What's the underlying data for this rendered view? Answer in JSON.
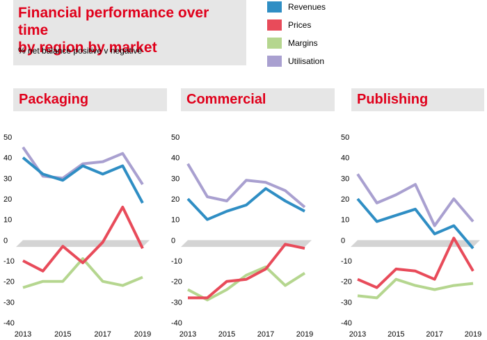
{
  "header": {
    "title_line1": "Financial performance over time",
    "title_line2": "by region by market",
    "subtitle": "% net balance positive v negative"
  },
  "legend": [
    {
      "label": "Revenues",
      "color": "#2f8ec4"
    },
    {
      "label": "Prices",
      "color": "#e84b5a"
    },
    {
      "label": "Margins",
      "color": "#b5d68f"
    },
    {
      "label": "Utilisation",
      "color": "#a9a0d0"
    }
  ],
  "chart_data": [
    {
      "type": "line",
      "title": "Packaging",
      "x": [
        2013,
        2014,
        2015,
        2016,
        2017,
        2018,
        2019
      ],
      "x_tick_labels": [
        "2013",
        "2015",
        "2017",
        "2019"
      ],
      "y_tick_labels": [
        "50",
        "40",
        "30",
        "20",
        "10",
        "0",
        "-10",
        "-20",
        "-30",
        "-40"
      ],
      "ylim": [
        -40,
        50
      ],
      "series": [
        {
          "name": "Revenues",
          "values": [
            40,
            32,
            29,
            36,
            32,
            36,
            18
          ]
        },
        {
          "name": "Prices",
          "values": [
            -10,
            -15,
            -3,
            -11,
            -1,
            16,
            -4
          ]
        },
        {
          "name": "Margins",
          "values": [
            -23,
            -20,
            -20,
            -9,
            -20,
            -22,
            -18
          ]
        },
        {
          "name": "Utilisation",
          "values": [
            45,
            31,
            30,
            37,
            38,
            42,
            27
          ]
        }
      ]
    },
    {
      "type": "line",
      "title": "Commercial",
      "x": [
        2013,
        2014,
        2015,
        2016,
        2017,
        2018,
        2019
      ],
      "x_tick_labels": [
        "2013",
        "2015",
        "2017",
        "2019"
      ],
      "y_tick_labels": [
        "50",
        "40",
        "30",
        "20",
        "10",
        "0",
        "-10",
        "-20",
        "-30",
        "-40"
      ],
      "ylim": [
        -40,
        50
      ],
      "series": [
        {
          "name": "Revenues",
          "values": [
            20,
            10,
            14,
            17,
            25,
            19,
            14
          ]
        },
        {
          "name": "Prices",
          "values": [
            -28,
            -28,
            -20,
            -19,
            -14,
            -2,
            -4
          ]
        },
        {
          "name": "Margins",
          "values": [
            -24,
            -29,
            -24,
            -17,
            -13,
            -22,
            -16
          ]
        },
        {
          "name": "Utilisation",
          "values": [
            37,
            21,
            19,
            29,
            28,
            24,
            16
          ]
        }
      ]
    },
    {
      "type": "line",
      "title": "Publishing",
      "x": [
        2013,
        2014,
        2015,
        2016,
        2017,
        2018,
        2019
      ],
      "x_tick_labels": [
        "2013",
        "2015",
        "2017",
        "2019"
      ],
      "y_tick_labels": [
        "50",
        "40",
        "30",
        "20",
        "10",
        "0",
        "-10",
        "-20",
        "-30",
        "-40"
      ],
      "ylim": [
        -40,
        50
      ],
      "series": [
        {
          "name": "Revenues",
          "values": [
            20,
            9,
            12,
            15,
            3,
            7,
            -4
          ]
        },
        {
          "name": "Prices",
          "values": [
            -19,
            -23,
            -14,
            -15,
            -19,
            1,
            -15
          ]
        },
        {
          "name": "Margins",
          "values": [
            -27,
            -28,
            -19,
            -22,
            -24,
            -22,
            -21
          ]
        },
        {
          "name": "Utilisation",
          "values": [
            32,
            18,
            22,
            27,
            7,
            20,
            9
          ]
        }
      ]
    }
  ]
}
